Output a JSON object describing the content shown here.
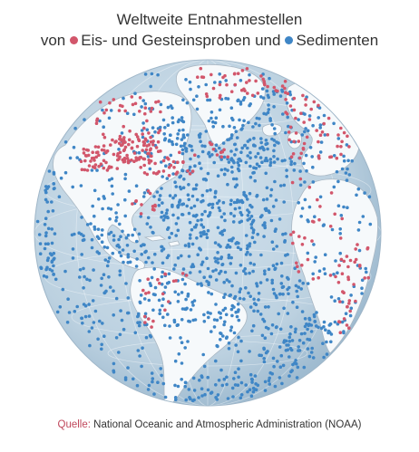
{
  "title_line1": "Weltweite Entnahmestellen",
  "title_line2": {
    "prefix": "von",
    "ice_label": "Eis- und Gesteinsproben und",
    "sediment_label": "Sedimenten"
  },
  "source": {
    "label": "Quelle:",
    "text": "National Oceanic and Atmospheric Administration (NOAA)"
  },
  "colors": {
    "ice_rock": "#d2566b",
    "sediment": "#3f86c6",
    "ocean": "#c3d6e4",
    "land": "#f6f9fb",
    "text": "#333333"
  },
  "map": {
    "projection": "orthographic",
    "view": "Atlantic Ocean, North and South America, Europe, Africa, Greenland",
    "series": [
      {
        "name": "Eis- und Gesteinsproben",
        "color_key": "ice_rock"
      },
      {
        "name": "Sedimente",
        "color_key": "sediment"
      }
    ]
  }
}
